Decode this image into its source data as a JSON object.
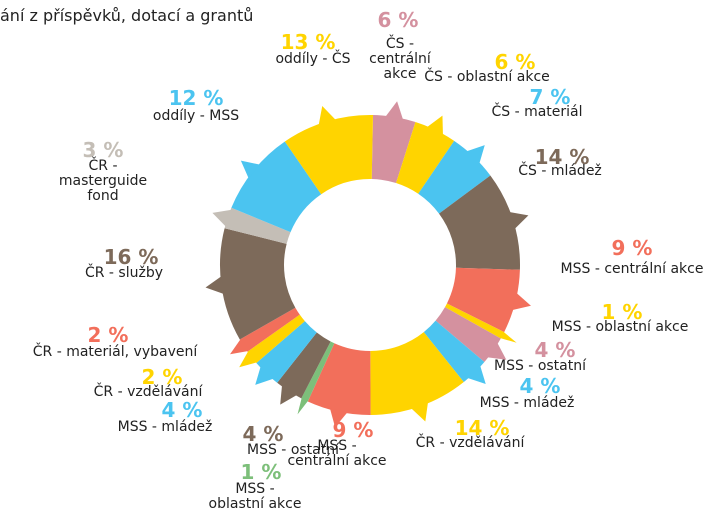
{
  "chart_data": {
    "type": "donut",
    "title": "ání z příspěvků, dotací a grantů",
    "categories": [
      "ČS - centrální akce",
      "ČS - oblastní akce",
      "ČS - materiál",
      "ČS - mládež",
      "MSS - centrální akce",
      "MSS - oblastní akce",
      "MSS - ostatní",
      "MSS - mládež",
      "ČR - vzdělávání",
      "MSS - centrální akce",
      "MSS - oblastní akce",
      "MSS - ostatní",
      "MSS - mládež",
      "ČR - vzdělávání",
      "ČR - materiál, vybavení",
      "ČR - služby",
      "ČR - masterguide fond",
      "oddíly - MSS",
      "oddíly - ČS"
    ],
    "values": [
      6,
      6,
      7,
      14,
      9,
      1,
      4,
      4,
      14,
      9,
      1,
      4,
      4,
      2,
      2,
      16,
      3,
      12,
      13
    ],
    "value_labels": [
      "6 %",
      "6 %",
      "7 %",
      "14 %",
      "9 %",
      "1 %",
      "4 %",
      "4 %",
      "14 %",
      "9 %",
      "1 %",
      "4 %",
      "4 %",
      "2 %",
      "2 %",
      "16 %",
      "3 %",
      "12 %",
      "13 %"
    ],
    "colors": [
      "#d4919f",
      "#ffd400",
      "#4bc4f0",
      "#7d6a5a",
      "#f26f5b",
      "#ffd400",
      "#d4919f",
      "#4bc4f0",
      "#ffd400",
      "#f26f5b",
      "#7dbf7a",
      "#7d6a5a",
      "#4bc4f0",
      "#ffd400",
      "#f26f5b",
      "#7d6a5a",
      "#c4beb6",
      "#4bc4f0",
      "#ffd400"
    ]
  }
}
